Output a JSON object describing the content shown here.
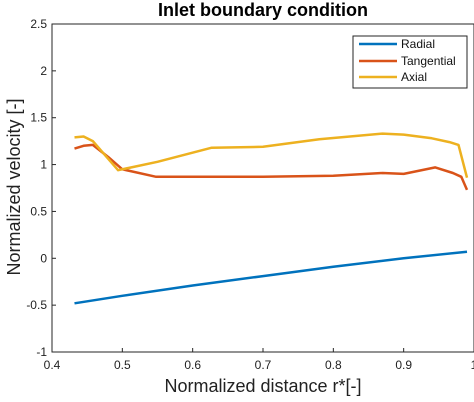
{
  "chart_data": {
    "type": "line",
    "title": "Inlet boundary condition",
    "xlabel": "Normalized distance r*[-]",
    "ylabel": "Normalized velocity [-]",
    "xlim": [
      0.4,
      1.0
    ],
    "ylim": [
      -1,
      2.5
    ],
    "xticks": [
      "0.4",
      "0.5",
      "0.6",
      "0.7",
      "0.8",
      "0.9",
      "1"
    ],
    "yticks": [
      "-1",
      "-0.5",
      "0",
      "0.5",
      "1",
      "1.5",
      "2",
      "2.5"
    ],
    "grid": false,
    "legend_position": "top-right",
    "series": [
      {
        "name": "Radial",
        "color": "#0072BD",
        "x": [
          0.432,
          0.5,
          0.6,
          0.7,
          0.8,
          0.9,
          0.99
        ],
        "y": [
          -0.48,
          -0.4,
          -0.29,
          -0.19,
          -0.09,
          0.0,
          0.07
        ]
      },
      {
        "name": "Tangential",
        "color": "#D95319",
        "x": [
          0.432,
          0.445,
          0.458,
          0.48,
          0.5,
          0.548,
          0.6,
          0.7,
          0.8,
          0.87,
          0.9,
          0.945,
          0.97,
          0.982,
          0.99
        ],
        "y": [
          1.17,
          1.2,
          1.21,
          1.08,
          0.95,
          0.87,
          0.87,
          0.87,
          0.88,
          0.91,
          0.9,
          0.97,
          0.91,
          0.87,
          0.73
        ]
      },
      {
        "name": "Axial",
        "color": "#EDB120",
        "x": [
          0.432,
          0.445,
          0.458,
          0.494,
          0.55,
          0.627,
          0.7,
          0.78,
          0.87,
          0.9,
          0.94,
          0.965,
          0.978,
          0.99
        ],
        "y": [
          1.29,
          1.3,
          1.25,
          0.94,
          1.03,
          1.18,
          1.19,
          1.27,
          1.33,
          1.32,
          1.28,
          1.24,
          1.21,
          0.86
        ]
      }
    ]
  }
}
